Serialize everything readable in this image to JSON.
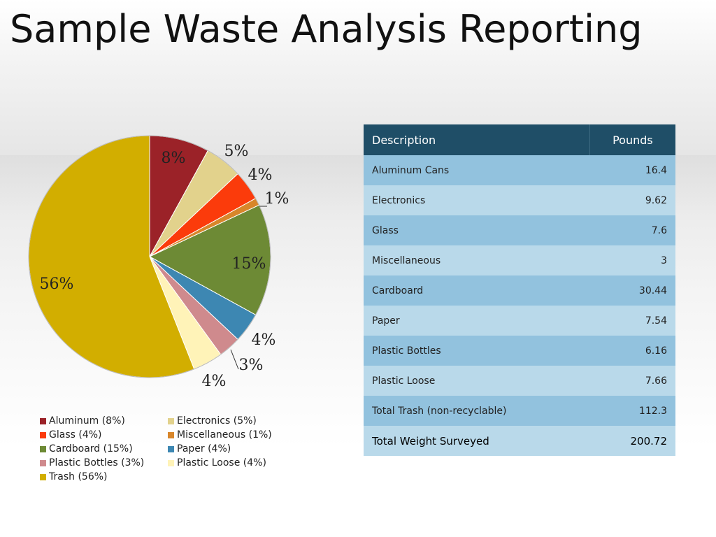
{
  "slide": {
    "title": "Sample Waste Analysis Reporting"
  },
  "chart_data": {
    "type": "pie",
    "title": "",
    "slices": [
      {
        "name": "Aluminum",
        "value": 8,
        "label": "8%",
        "legend": "Aluminum (8%)",
        "color": "#9b2228"
      },
      {
        "name": "Electronics",
        "value": 5,
        "label": "5%",
        "legend": "Electronics (5%)",
        "color": "#e2d28c"
      },
      {
        "name": "Glass",
        "value": 4,
        "label": "4%",
        "legend": "Glass (4%)",
        "color": "#fb3b0b"
      },
      {
        "name": "Miscellaneous",
        "value": 1,
        "label": "1%",
        "legend": "Miscellaneous (1%)",
        "color": "#d8862a"
      },
      {
        "name": "Cardboard",
        "value": 15,
        "label": "15%",
        "legend": "Cardboard (15%)",
        "color": "#6d8a35"
      },
      {
        "name": "Paper",
        "value": 4,
        "label": "4%",
        "legend": "Paper (4%)",
        "color": "#3d87b2"
      },
      {
        "name": "Plastic Bottles",
        "value": 3,
        "label": "3%",
        "legend": "Plastic Bottles (3%)",
        "color": "#cf8a8d"
      },
      {
        "name": "Plastic Loose",
        "value": 4,
        "label": "4%",
        "legend": "Plastic Loose (4%)",
        "color": "#fff3b8"
      },
      {
        "name": "Trash",
        "value": 56,
        "label": "56%",
        "legend": "Trash (56%)",
        "color": "#d2ae00"
      }
    ],
    "legend_position": "bottom"
  },
  "table": {
    "headers": [
      "Description",
      "Pounds"
    ],
    "rows": [
      [
        "Aluminum Cans",
        "16.4"
      ],
      [
        "Electronics",
        "9.62"
      ],
      [
        "Glass",
        "7.6"
      ],
      [
        "Miscellaneous",
        "3"
      ],
      [
        "Cardboard",
        "30.44"
      ],
      [
        "Paper",
        "7.54"
      ],
      [
        "Plastic Bottles",
        "6.16"
      ],
      [
        "Plastic Loose",
        "7.66"
      ],
      [
        "Total Trash (non-recyclable)",
        "112.3"
      ]
    ],
    "total_row": [
      "Total Weight Surveyed",
      "200.72"
    ]
  }
}
